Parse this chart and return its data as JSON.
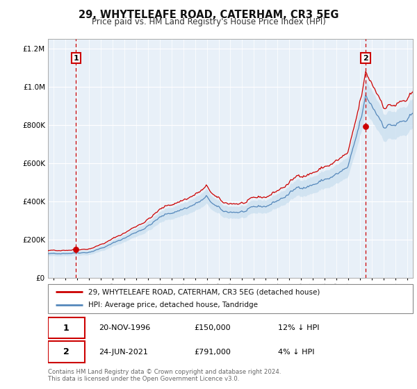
{
  "title": "29, WHYTELEAFE ROAD, CATERHAM, CR3 5EG",
  "subtitle": "Price paid vs. HM Land Registry's House Price Index (HPI)",
  "legend_line1": "29, WHYTELEAFE ROAD, CATERHAM, CR3 5EG (detached house)",
  "legend_line2": "HPI: Average price, detached house, Tandridge",
  "annotation1_label": "1",
  "annotation1_date": "20-NOV-1996",
  "annotation1_price": "£150,000",
  "annotation1_hpi": "12% ↓ HPI",
  "annotation1_year": 1996.88,
  "annotation1_value": 150000,
  "annotation2_label": "2",
  "annotation2_date": "24-JUN-2021",
  "annotation2_price": "£791,000",
  "annotation2_hpi": "4% ↓ HPI",
  "annotation2_year": 2021.48,
  "annotation2_value": 791000,
  "sale_color": "#cc0000",
  "hpi_color": "#5588bb",
  "hpi_fill_color": "#cce0f0",
  "ylim": [
    0,
    1250000
  ],
  "xlim_start": 1994.5,
  "xlim_end": 2025.5,
  "footer": "Contains HM Land Registry data © Crown copyright and database right 2024.\nThis data is licensed under the Open Government Licence v3.0.",
  "sale1_year": 1996.88,
  "sale1_value": 150000,
  "sale2_year": 2021.48,
  "sale2_value": 791000,
  "hpi_scale1": 150000,
  "hpi_ref1_year": 1996.88
}
